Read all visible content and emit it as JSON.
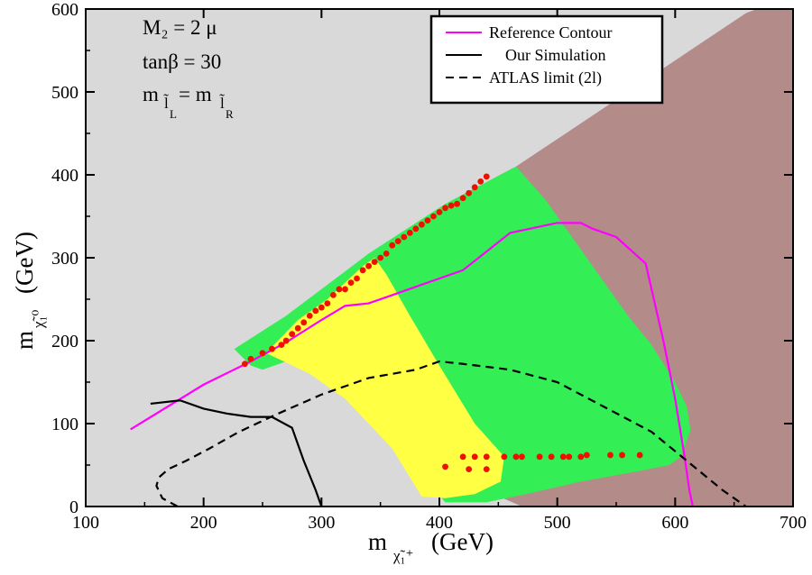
{
  "chart_data": {
    "type": "scatter",
    "title": "",
    "xlabel": {
      "main": "m",
      "sub": "χ̃₁⁺",
      "unit": "(GeV)"
    },
    "ylabel": {
      "main": "m",
      "sub": "χ̃₁⁰",
      "unit": "(GeV)"
    },
    "xlim": [
      100,
      700
    ],
    "ylim": [
      0,
      600
    ],
    "xticks": [
      100,
      200,
      300,
      400,
      500,
      600,
      700
    ],
    "yticks": [
      0,
      100,
      200,
      300,
      400,
      500,
      600
    ],
    "annotations": [
      {
        "text": "M₂ = 2 μ"
      },
      {
        "text": "tanβ = 30"
      },
      {
        "main": "m",
        "sub1": "l̃",
        "sub1b": "L",
        "mid": " = m",
        "sub2": "l̃",
        "sub2b": "R"
      }
    ],
    "legend": {
      "position": "top-right",
      "entries": [
        {
          "label": "Reference Contour",
          "color": "#ff00ff",
          "style": "solid"
        },
        {
          "label": "Our Simulation",
          "color": "#000000",
          "style": "solid"
        },
        {
          "label": "ATLAS limit (2l)",
          "color": "#000000",
          "style": "dashed"
        }
      ]
    },
    "colors": {
      "background": "#d9d9d9",
      "excluded": "#b38b89",
      "green": "#33ee55",
      "yellow": "#ffff44",
      "points": "#ee1100"
    },
    "regions": {
      "excluded": [
        [
          100,
          600
        ],
        [
          100,
          600
        ],
        [
          705,
          600
        ],
        [
          705,
          0
        ],
        [
          470,
          0
        ],
        [
          430,
          25
        ],
        [
          390,
          165
        ],
        [
          365,
          270
        ],
        [
          400,
          345
        ],
        [
          445,
          395
        ],
        [
          465,
          410
        ],
        [
          560,
          500
        ],
        [
          660,
          595
        ],
        [
          705,
          620
        ]
      ],
      "green": [
        [
          226,
          190
        ],
        [
          270,
          230
        ],
        [
          340,
          305
        ],
        [
          405,
          365
        ],
        [
          465,
          410
        ],
        [
          490,
          370
        ],
        [
          530,
          290
        ],
        [
          560,
          230
        ],
        [
          580,
          195
        ],
        [
          600,
          150
        ],
        [
          610,
          120
        ],
        [
          613,
          92
        ],
        [
          605,
          60
        ],
        [
          595,
          50
        ],
        [
          570,
          43
        ],
        [
          520,
          30
        ],
        [
          480,
          17
        ],
        [
          440,
          5
        ],
        [
          405,
          5
        ],
        [
          360,
          80
        ],
        [
          320,
          140
        ],
        [
          280,
          180
        ],
        [
          250,
          165
        ],
        [
          240,
          170
        ]
      ],
      "yellow": [
        [
          253,
          185
        ],
        [
          280,
          225
        ],
        [
          305,
          250
        ],
        [
          335,
          290
        ],
        [
          345,
          300
        ],
        [
          355,
          280
        ],
        [
          375,
          230
        ],
        [
          400,
          170
        ],
        [
          430,
          100
        ],
        [
          455,
          60
        ],
        [
          452,
          30
        ],
        [
          430,
          15
        ],
        [
          405,
          10
        ],
        [
          385,
          12
        ],
        [
          360,
          70
        ],
        [
          320,
          130
        ],
        [
          290,
          160
        ],
        [
          268,
          175
        ]
      ]
    },
    "series": [
      {
        "name": "Reference Contour",
        "type": "line",
        "color": "#ff00ff",
        "x": [
          138,
          200,
          240,
          270,
          300,
          320,
          340,
          360,
          380,
          420,
          460,
          500,
          520,
          530,
          550,
          575,
          590,
          600,
          608,
          612,
          615
        ],
        "y": [
          93,
          147,
          175,
          198,
          225,
          242,
          245,
          255,
          265,
          285,
          330,
          342,
          342,
          335,
          325,
          293,
          200,
          130,
          60,
          20,
          0
        ]
      },
      {
        "name": "Our Simulation",
        "type": "line",
        "color": "#000000",
        "x": [
          155,
          180,
          200,
          220,
          240,
          258,
          275,
          285,
          295,
          300
        ],
        "y": [
          124,
          128,
          118,
          112,
          108,
          108,
          95,
          55,
          20,
          0
        ]
      },
      {
        "name": "ATLAS limit (2l)",
        "type": "line",
        "color": "#000000",
        "dash": true,
        "x": [
          178,
          165,
          160,
          162,
          170,
          185,
          205,
          230,
          260,
          300,
          340,
          380,
          400,
          420,
          460,
          500,
          540,
          580,
          610,
          640,
          660
        ],
        "y": [
          0,
          10,
          25,
          35,
          45,
          55,
          70,
          90,
          110,
          135,
          155,
          165,
          175,
          172,
          165,
          150,
          120,
          90,
          55,
          20,
          0
        ]
      },
      {
        "name": "Red points",
        "type": "scatter",
        "color": "#ee1100",
        "x": [
          235,
          240,
          250,
          258,
          266,
          270,
          275,
          280,
          285,
          290,
          295,
          300,
          305,
          310,
          315,
          320,
          325,
          330,
          335,
          340,
          345,
          350,
          355,
          360,
          365,
          370,
          375,
          380,
          385,
          390,
          395,
          400,
          405,
          410,
          415,
          420,
          425,
          430,
          435,
          440,
          405,
          420,
          430,
          440,
          455,
          465,
          470,
          485,
          495,
          505,
          510,
          520,
          525,
          545,
          555,
          570
        ],
        "y": [
          172,
          178,
          185,
          190,
          195,
          200,
          208,
          215,
          222,
          230,
          236,
          240,
          245,
          255,
          262,
          262,
          270,
          275,
          285,
          290,
          295,
          300,
          305,
          315,
          320,
          325,
          330,
          335,
          340,
          345,
          350,
          355,
          360,
          363,
          365,
          372,
          378,
          385,
          392,
          398,
          48,
          60,
          60,
          60,
          60,
          60,
          60,
          60,
          60,
          60,
          60,
          60,
          62,
          62,
          62,
          62
        ]
      },
      {
        "name": "Red points lower",
        "type": "scatter",
        "color": "#ee1100",
        "x": [
          425,
          440
        ],
        "y": [
          45,
          45
        ]
      }
    ]
  }
}
